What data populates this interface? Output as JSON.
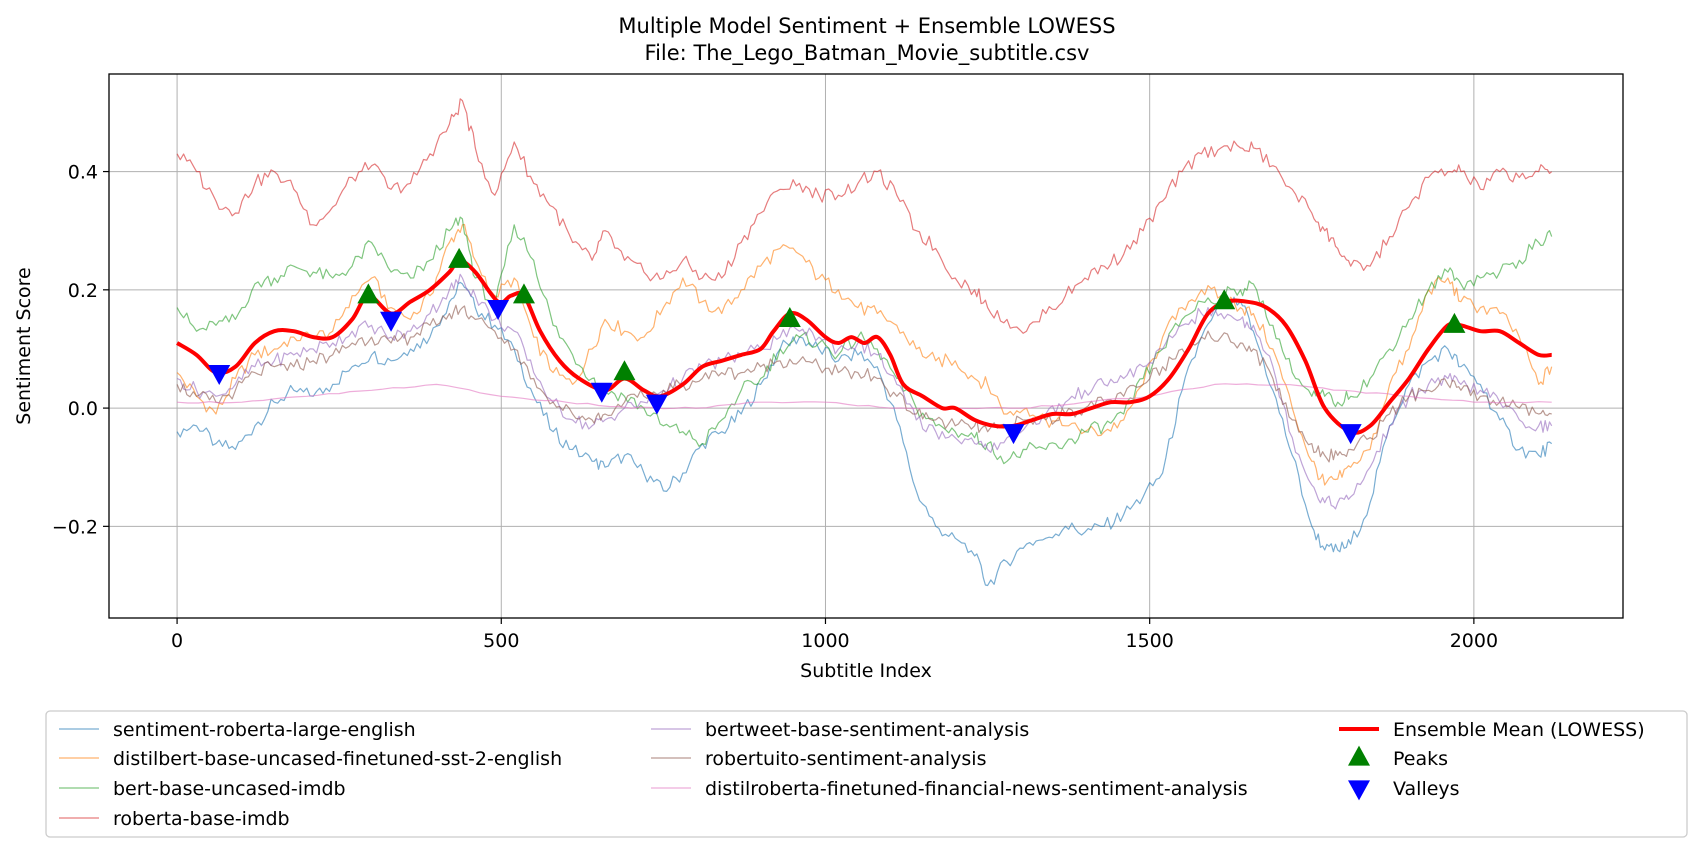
{
  "chart_data": {
    "type": "line",
    "title": "Multiple Model Sentiment + Ensemble LOWESS",
    "subtitle": "File: The_Lego_Batman_Movie_subtitle.csv",
    "xlabel": "Subtitle Index",
    "ylabel": "Sentiment Score",
    "xlim": [
      -105,
      2230
    ],
    "ylim": [
      -0.355,
      0.565
    ],
    "xticks": [
      0,
      500,
      1000,
      1500,
      2000
    ],
    "yticks": [
      -0.2,
      0.0,
      0.2,
      0.4
    ],
    "xtick_labels": [
      "0",
      "500",
      "1000",
      "1500",
      "2000"
    ],
    "ytick_labels": [
      "−0.2",
      "0.0",
      "0.2",
      "0.4"
    ],
    "grid": true,
    "legend_placement": "bottom",
    "series": [
      {
        "name": "sentiment-roberta-large-english",
        "color": "#1f77b4",
        "x": [
          0,
          30,
          60,
          90,
          120,
          150,
          180,
          210,
          240,
          270,
          300,
          330,
          360,
          390,
          420,
          440,
          460,
          490,
          520,
          550,
          580,
          610,
          640,
          660,
          690,
          720,
          750,
          780,
          810,
          840,
          870,
          900,
          930,
          960,
          990,
          1020,
          1050,
          1080,
          1110,
          1140,
          1170,
          1200,
          1230,
          1250,
          1280,
          1310,
          1340,
          1370,
          1400,
          1430,
          1460,
          1490,
          1520,
          1550,
          1580,
          1610,
          1640,
          1660,
          1690,
          1720,
          1750,
          1770,
          1790,
          1810,
          1840,
          1870,
          1900,
          1930,
          1960,
          1980,
          2010,
          2040,
          2070,
          2100,
          2120
        ],
        "y": [
          -0.04,
          -0.03,
          -0.06,
          -0.07,
          -0.03,
          0.01,
          0.03,
          0.02,
          0.04,
          0.07,
          0.09,
          0.08,
          0.1,
          0.12,
          0.18,
          0.21,
          0.17,
          0.14,
          0.1,
          0.02,
          -0.04,
          -0.07,
          -0.09,
          -0.1,
          -0.08,
          -0.11,
          -0.14,
          -0.11,
          -0.06,
          -0.04,
          -0.01,
          0.04,
          0.1,
          0.12,
          0.1,
          0.08,
          0.09,
          0.07,
          -0.02,
          -0.14,
          -0.2,
          -0.22,
          -0.25,
          -0.3,
          -0.26,
          -0.23,
          -0.22,
          -0.2,
          -0.21,
          -0.2,
          -0.18,
          -0.15,
          -0.11,
          0.03,
          0.12,
          0.17,
          0.18,
          0.13,
          0.03,
          -0.08,
          -0.2,
          -0.24,
          -0.24,
          -0.23,
          -0.16,
          -0.03,
          0.04,
          0.08,
          0.1,
          0.07,
          0.04,
          -0.02,
          -0.07,
          -0.08,
          -0.06
        ]
      },
      {
        "name": "distilbert-base-uncased-finetuned-sst-2-english",
        "color": "#ff7f0e",
        "x": [
          0,
          30,
          60,
          90,
          120,
          150,
          180,
          210,
          240,
          270,
          300,
          330,
          360,
          390,
          420,
          440,
          460,
          490,
          520,
          550,
          580,
          610,
          640,
          660,
          690,
          720,
          750,
          780,
          810,
          840,
          870,
          900,
          930,
          960,
          990,
          1020,
          1050,
          1080,
          1110,
          1140,
          1170,
          1200,
          1230,
          1250,
          1280,
          1310,
          1340,
          1370,
          1400,
          1430,
          1460,
          1490,
          1520,
          1550,
          1580,
          1610,
          1640,
          1660,
          1690,
          1720,
          1750,
          1770,
          1790,
          1810,
          1840,
          1870,
          1900,
          1930,
          1960,
          1980,
          2010,
          2040,
          2070,
          2100,
          2120
        ],
        "y": [
          0.06,
          0.02,
          -0.01,
          0.05,
          0.09,
          0.1,
          0.12,
          0.12,
          0.13,
          0.19,
          0.22,
          0.17,
          0.15,
          0.19,
          0.28,
          0.31,
          0.25,
          0.19,
          0.22,
          0.12,
          0.06,
          0.04,
          0.1,
          0.15,
          0.13,
          0.12,
          0.17,
          0.22,
          0.18,
          0.16,
          0.2,
          0.24,
          0.27,
          0.26,
          0.22,
          0.2,
          0.17,
          0.16,
          0.14,
          0.1,
          0.08,
          0.08,
          0.05,
          0.04,
          -0.01,
          0.0,
          -0.02,
          -0.03,
          -0.04,
          -0.04,
          -0.02,
          0.04,
          0.12,
          0.17,
          0.2,
          0.19,
          0.17,
          0.16,
          0.1,
          0.0,
          -0.09,
          -0.13,
          -0.12,
          -0.1,
          -0.07,
          0.04,
          0.1,
          0.2,
          0.22,
          0.18,
          0.17,
          0.16,
          0.12,
          0.04,
          0.07
        ]
      },
      {
        "name": "bert-base-uncased-imdb",
        "color": "#2ca02c",
        "x": [
          0,
          30,
          60,
          90,
          120,
          150,
          180,
          210,
          240,
          270,
          300,
          330,
          360,
          390,
          420,
          440,
          460,
          490,
          520,
          550,
          580,
          610,
          640,
          660,
          690,
          720,
          750,
          780,
          810,
          840,
          870,
          900,
          930,
          960,
          990,
          1020,
          1050,
          1080,
          1110,
          1140,
          1170,
          1200,
          1230,
          1250,
          1280,
          1310,
          1340,
          1370,
          1400,
          1430,
          1460,
          1490,
          1520,
          1550,
          1580,
          1610,
          1640,
          1660,
          1690,
          1720,
          1750,
          1770,
          1790,
          1810,
          1840,
          1870,
          1900,
          1930,
          1960,
          1980,
          2010,
          2040,
          2070,
          2100,
          2120
        ],
        "y": [
          0.17,
          0.13,
          0.14,
          0.15,
          0.21,
          0.22,
          0.24,
          0.23,
          0.22,
          0.24,
          0.28,
          0.23,
          0.22,
          0.25,
          0.3,
          0.32,
          0.22,
          0.17,
          0.31,
          0.25,
          0.14,
          0.09,
          0.05,
          0.03,
          0.02,
          0.0,
          -0.03,
          -0.04,
          -0.06,
          -0.02,
          0.03,
          0.05,
          0.1,
          0.12,
          0.11,
          0.09,
          0.12,
          0.1,
          0.05,
          0.0,
          -0.03,
          -0.04,
          -0.05,
          -0.06,
          -0.09,
          -0.07,
          -0.07,
          -0.06,
          -0.04,
          -0.03,
          -0.01,
          0.05,
          0.1,
          0.15,
          0.18,
          0.19,
          0.2,
          0.21,
          0.14,
          0.06,
          0.02,
          0.02,
          0.01,
          0.02,
          0.05,
          0.1,
          0.15,
          0.2,
          0.23,
          0.21,
          0.22,
          0.23,
          0.25,
          0.28,
          0.29
        ]
      },
      {
        "name": "roberta-base-imdb",
        "color": "#d62728",
        "x": [
          0,
          30,
          60,
          90,
          120,
          150,
          180,
          210,
          240,
          270,
          300,
          330,
          360,
          390,
          420,
          440,
          460,
          490,
          520,
          550,
          580,
          610,
          640,
          660,
          690,
          720,
          750,
          780,
          810,
          840,
          870,
          900,
          930,
          960,
          990,
          1020,
          1050,
          1080,
          1110,
          1140,
          1170,
          1200,
          1230,
          1250,
          1280,
          1310,
          1340,
          1370,
          1400,
          1430,
          1460,
          1490,
          1520,
          1550,
          1580,
          1610,
          1640,
          1660,
          1690,
          1720,
          1750,
          1770,
          1790,
          1810,
          1840,
          1870,
          1900,
          1930,
          1960,
          1980,
          2010,
          2040,
          2070,
          2100,
          2120
        ],
        "y": [
          0.43,
          0.4,
          0.35,
          0.33,
          0.38,
          0.4,
          0.37,
          0.31,
          0.34,
          0.39,
          0.41,
          0.37,
          0.38,
          0.43,
          0.48,
          0.52,
          0.44,
          0.36,
          0.45,
          0.38,
          0.34,
          0.28,
          0.25,
          0.3,
          0.25,
          0.23,
          0.22,
          0.25,
          0.22,
          0.22,
          0.28,
          0.33,
          0.37,
          0.38,
          0.36,
          0.36,
          0.38,
          0.4,
          0.36,
          0.3,
          0.27,
          0.22,
          0.2,
          0.17,
          0.15,
          0.13,
          0.16,
          0.19,
          0.22,
          0.24,
          0.26,
          0.3,
          0.35,
          0.4,
          0.43,
          0.44,
          0.44,
          0.44,
          0.41,
          0.37,
          0.33,
          0.3,
          0.27,
          0.24,
          0.24,
          0.29,
          0.34,
          0.39,
          0.4,
          0.4,
          0.37,
          0.4,
          0.39,
          0.4,
          0.4
        ]
      },
      {
        "name": "bertweet-base-sentiment-analysis",
        "color": "#9467bd",
        "x": [
          0,
          30,
          60,
          90,
          120,
          150,
          180,
          210,
          240,
          270,
          300,
          330,
          360,
          390,
          420,
          440,
          460,
          490,
          520,
          550,
          580,
          610,
          640,
          660,
          690,
          720,
          750,
          780,
          810,
          840,
          870,
          900,
          930,
          960,
          990,
          1020,
          1050,
          1080,
          1110,
          1140,
          1170,
          1200,
          1230,
          1250,
          1280,
          1310,
          1340,
          1370,
          1400,
          1430,
          1460,
          1490,
          1520,
          1550,
          1580,
          1610,
          1640,
          1660,
          1690,
          1720,
          1750,
          1770,
          1790,
          1810,
          1840,
          1870,
          1900,
          1930,
          1960,
          1980,
          2010,
          2040,
          2070,
          2100,
          2120
        ],
        "y": [
          0.05,
          0.03,
          0.02,
          0.04,
          0.07,
          0.08,
          0.09,
          0.1,
          0.11,
          0.13,
          0.14,
          0.12,
          0.13,
          0.16,
          0.2,
          0.22,
          0.19,
          0.15,
          0.13,
          0.06,
          0.01,
          -0.02,
          -0.03,
          -0.02,
          0.0,
          0.01,
          0.03,
          0.05,
          0.07,
          0.08,
          0.09,
          0.1,
          0.12,
          0.13,
          0.12,
          0.1,
          0.11,
          0.09,
          0.04,
          -0.02,
          -0.04,
          -0.05,
          -0.06,
          -0.07,
          -0.05,
          -0.03,
          -0.01,
          0.01,
          0.03,
          0.04,
          0.05,
          0.07,
          0.1,
          0.14,
          0.16,
          0.16,
          0.15,
          0.14,
          0.07,
          -0.05,
          -0.13,
          -0.16,
          -0.16,
          -0.15,
          -0.1,
          -0.03,
          0.02,
          0.04,
          0.05,
          0.04,
          0.03,
          0.01,
          -0.02,
          -0.03,
          -0.03
        ]
      },
      {
        "name": "robertuito-sentiment-analysis",
        "color": "#8c564b",
        "x": [
          0,
          30,
          60,
          90,
          120,
          150,
          180,
          210,
          240,
          270,
          300,
          330,
          360,
          390,
          420,
          440,
          460,
          490,
          520,
          550,
          580,
          610,
          640,
          660,
          690,
          720,
          750,
          780,
          810,
          840,
          870,
          900,
          930,
          960,
          990,
          1020,
          1050,
          1080,
          1110,
          1140,
          1170,
          1200,
          1230,
          1250,
          1280,
          1310,
          1340,
          1370,
          1400,
          1430,
          1460,
          1490,
          1520,
          1550,
          1580,
          1610,
          1640,
          1660,
          1690,
          1720,
          1750,
          1770,
          1790,
          1810,
          1840,
          1870,
          1900,
          1930,
          1960,
          1980,
          2010,
          2040,
          2070,
          2100,
          2120
        ],
        "y": [
          0.04,
          0.02,
          0.01,
          0.03,
          0.06,
          0.07,
          0.07,
          0.08,
          0.09,
          0.11,
          0.12,
          0.11,
          0.12,
          0.14,
          0.16,
          0.17,
          0.15,
          0.13,
          0.1,
          0.05,
          0.01,
          -0.01,
          -0.02,
          -0.01,
          0.01,
          0.02,
          0.03,
          0.04,
          0.05,
          0.06,
          0.06,
          0.07,
          0.08,
          0.08,
          0.07,
          0.06,
          0.06,
          0.05,
          0.02,
          -0.01,
          -0.02,
          -0.03,
          -0.03,
          -0.04,
          -0.03,
          -0.02,
          -0.02,
          -0.01,
          0.0,
          0.01,
          0.02,
          0.04,
          0.07,
          0.1,
          0.12,
          0.12,
          0.11,
          0.1,
          0.05,
          -0.02,
          -0.06,
          -0.08,
          -0.08,
          -0.07,
          -0.05,
          -0.01,
          0.02,
          0.03,
          0.04,
          0.03,
          0.02,
          0.01,
          0.0,
          -0.01,
          -0.01
        ]
      },
      {
        "name": "distilroberta-finetuned-financial-news-sentiment-analysis",
        "color": "#e377c2",
        "x": [
          0,
          100,
          200,
          300,
          400,
          500,
          600,
          700,
          800,
          900,
          1000,
          1100,
          1200,
          1300,
          1400,
          1500,
          1600,
          1700,
          1800,
          1900,
          2000,
          2120
        ],
        "y": [
          0.01,
          0.01,
          0.02,
          0.03,
          0.04,
          0.02,
          0.01,
          0.0,
          0.0,
          0.01,
          0.01,
          0.0,
          0.0,
          0.0,
          0.01,
          0.02,
          0.04,
          0.04,
          0.03,
          0.02,
          0.01,
          0.01
        ]
      },
      {
        "name": "Ensemble Mean (LOWESS)",
        "color": "#ff0000",
        "x": [
          0,
          30,
          60,
          90,
          120,
          150,
          180,
          210,
          240,
          270,
          295,
          330,
          360,
          390,
          420,
          435,
          460,
          495,
          515,
          535,
          560,
          590,
          620,
          660,
          690,
          720,
          745,
          780,
          810,
          840,
          870,
          900,
          920,
          945,
          970,
          1000,
          1020,
          1040,
          1060,
          1080,
          1100,
          1120,
          1150,
          1180,
          1200,
          1230,
          1260,
          1290,
          1320,
          1350,
          1380,
          1410,
          1440,
          1470,
          1500,
          1530,
          1560,
          1590,
          1620,
          1650,
          1680,
          1710,
          1740,
          1770,
          1810,
          1840,
          1870,
          1900,
          1930,
          1960,
          1980,
          2010,
          2040,
          2070,
          2100,
          2120
        ],
        "y": [
          0.11,
          0.09,
          0.06,
          0.07,
          0.11,
          0.13,
          0.13,
          0.12,
          0.12,
          0.15,
          0.19,
          0.16,
          0.18,
          0.2,
          0.23,
          0.25,
          0.23,
          0.18,
          0.19,
          0.19,
          0.13,
          0.08,
          0.05,
          0.03,
          0.05,
          0.03,
          0.02,
          0.04,
          0.07,
          0.08,
          0.09,
          0.1,
          0.13,
          0.16,
          0.15,
          0.12,
          0.11,
          0.12,
          0.11,
          0.12,
          0.09,
          0.04,
          0.02,
          0.0,
          0.0,
          -0.02,
          -0.03,
          -0.03,
          -0.02,
          -0.01,
          -0.01,
          0.0,
          0.01,
          0.01,
          0.02,
          0.05,
          0.1,
          0.16,
          0.18,
          0.18,
          0.17,
          0.14,
          0.08,
          0.0,
          -0.04,
          -0.03,
          0.01,
          0.05,
          0.1,
          0.14,
          0.14,
          0.13,
          0.13,
          0.11,
          0.09,
          0.09
        ]
      }
    ],
    "peaks": {
      "name": "Peaks",
      "color": "#008000",
      "x": [
        295,
        435,
        535,
        690,
        945,
        1615,
        1970
      ],
      "y": [
        0.19,
        0.25,
        0.19,
        0.06,
        0.15,
        0.18,
        0.14
      ]
    },
    "valleys": {
      "name": "Valleys",
      "color": "#0000ff",
      "x": [
        65,
        330,
        495,
        655,
        740,
        1290,
        1810
      ],
      "y": [
        0.06,
        0.15,
        0.17,
        0.03,
        0.01,
        -0.04,
        -0.04
      ]
    }
  }
}
